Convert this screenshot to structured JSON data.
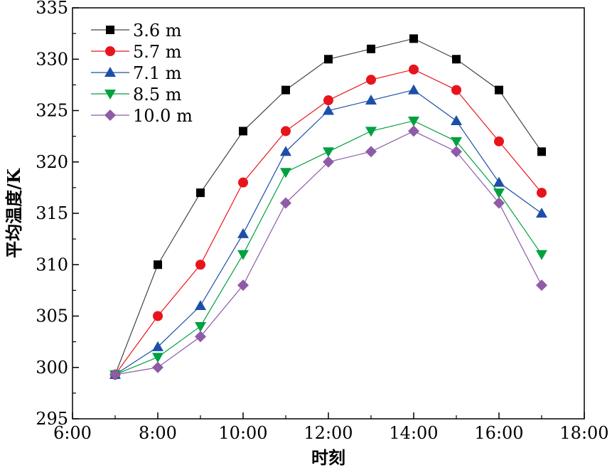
{
  "chart_data": {
    "type": "line",
    "xlabel": "时刻",
    "ylabel": "平均温度/K",
    "x": [
      "7:00",
      "8:00",
      "9:00",
      "10:00",
      "11:00",
      "12:00",
      "13:00",
      "14:00",
      "15:00",
      "16:00",
      "17:00"
    ],
    "x_hours": [
      7,
      8,
      9,
      10,
      11,
      12,
      13,
      14,
      15,
      16,
      17
    ],
    "xlim": [
      6,
      18
    ],
    "ylim": [
      295,
      335
    ],
    "x_ticks": [
      "6:00",
      "8:00",
      "10:00",
      "12:00",
      "14:00",
      "16:00",
      "18:00"
    ],
    "y_ticks": [
      "295",
      "300",
      "305",
      "310",
      "315",
      "320",
      "325",
      "330",
      "335"
    ],
    "legend_position": "top-left",
    "grid": false,
    "series": [
      {
        "name": "3.6 m",
        "marker": "square",
        "color": "#000000",
        "line_color": "#444444",
        "values": [
          299.3,
          310,
          317,
          323,
          327,
          330,
          331,
          332,
          330,
          327,
          321
        ]
      },
      {
        "name": "5.7 m",
        "marker": "circle",
        "color": "#e8141c",
        "line_color": "#e8141c",
        "values": [
          299.3,
          305,
          310,
          318,
          323,
          326,
          328,
          329,
          327,
          322,
          317
        ]
      },
      {
        "name": "7.1 m",
        "marker": "triangle-up",
        "color": "#1c4fa8",
        "line_color": "#1c4fa8",
        "values": [
          299.3,
          302,
          306,
          313,
          321,
          325,
          326,
          327,
          324,
          318,
          315
        ]
      },
      {
        "name": "8.5 m",
        "marker": "triangle-down",
        "color": "#00a140",
        "line_color": "#00a140",
        "values": [
          299.3,
          301,
          304,
          311,
          319,
          321,
          323,
          324,
          322,
          317,
          311
        ]
      },
      {
        "name": "10.0 m",
        "marker": "diamond",
        "color": "#8e5ba8",
        "line_color": "#8e5ba8",
        "values": [
          299.3,
          300,
          303,
          308,
          316,
          320,
          321,
          323,
          321,
          316,
          308
        ]
      }
    ]
  }
}
